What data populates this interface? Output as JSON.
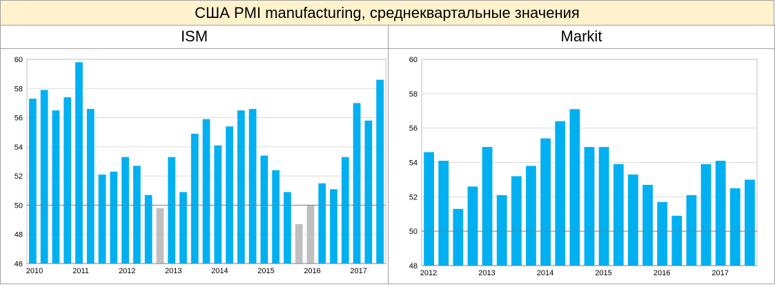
{
  "title": "США PMI manufacturing, среднеквартальные значения",
  "charts": {
    "ism": {
      "panel_title": "ISM",
      "chart_data": {
        "type": "bar",
        "ylim": [
          46,
          60
        ],
        "yticks": [
          "46",
          "48",
          "50",
          "52",
          "54",
          "56",
          "58",
          "60"
        ],
        "reference_line": 50,
        "year_labels": [
          "2010",
          "2011",
          "2012",
          "2013",
          "2014",
          "2015",
          "2016",
          "2017"
        ],
        "year_positions": [
          0,
          4,
          8,
          12,
          16,
          20,
          24,
          28
        ],
        "values": [
          57.3,
          57.9,
          56.5,
          57.4,
          59.8,
          56.6,
          52.1,
          52.3,
          53.3,
          52.7,
          50.7,
          49.8,
          53.3,
          50.9,
          54.9,
          55.9,
          54.1,
          55.4,
          56.5,
          56.6,
          53.4,
          52.4,
          50.9,
          48.7,
          50.0,
          51.5,
          51.1,
          53.3,
          57.0,
          55.8,
          58.6
        ],
        "colors": {
          "bar": "#00b0f0",
          "below50": "#bfbfbf",
          "grid": "#d9d9d9",
          "reference": "#7f7f7f"
        }
      }
    },
    "markit": {
      "panel_title": "Markit",
      "chart_data": {
        "type": "bar",
        "ylim": [
          48,
          60
        ],
        "yticks": [
          "48",
          "50",
          "52",
          "54",
          "56",
          "58",
          "60"
        ],
        "reference_line": 50,
        "year_labels": [
          "2012",
          "2013",
          "2014",
          "2015",
          "2016",
          "2017"
        ],
        "year_positions": [
          0,
          4,
          8,
          12,
          16,
          20
        ],
        "values": [
          54.6,
          54.1,
          51.3,
          52.6,
          54.9,
          52.1,
          53.2,
          53.8,
          55.4,
          56.4,
          57.1,
          54.9,
          54.9,
          53.9,
          53.3,
          52.7,
          51.7,
          50.9,
          52.1,
          53.9,
          54.1,
          52.5,
          53.0
        ],
        "colors": {
          "bar": "#00b0f0",
          "grid": "#d9d9d9",
          "reference": "#7f7f7f"
        }
      }
    }
  }
}
